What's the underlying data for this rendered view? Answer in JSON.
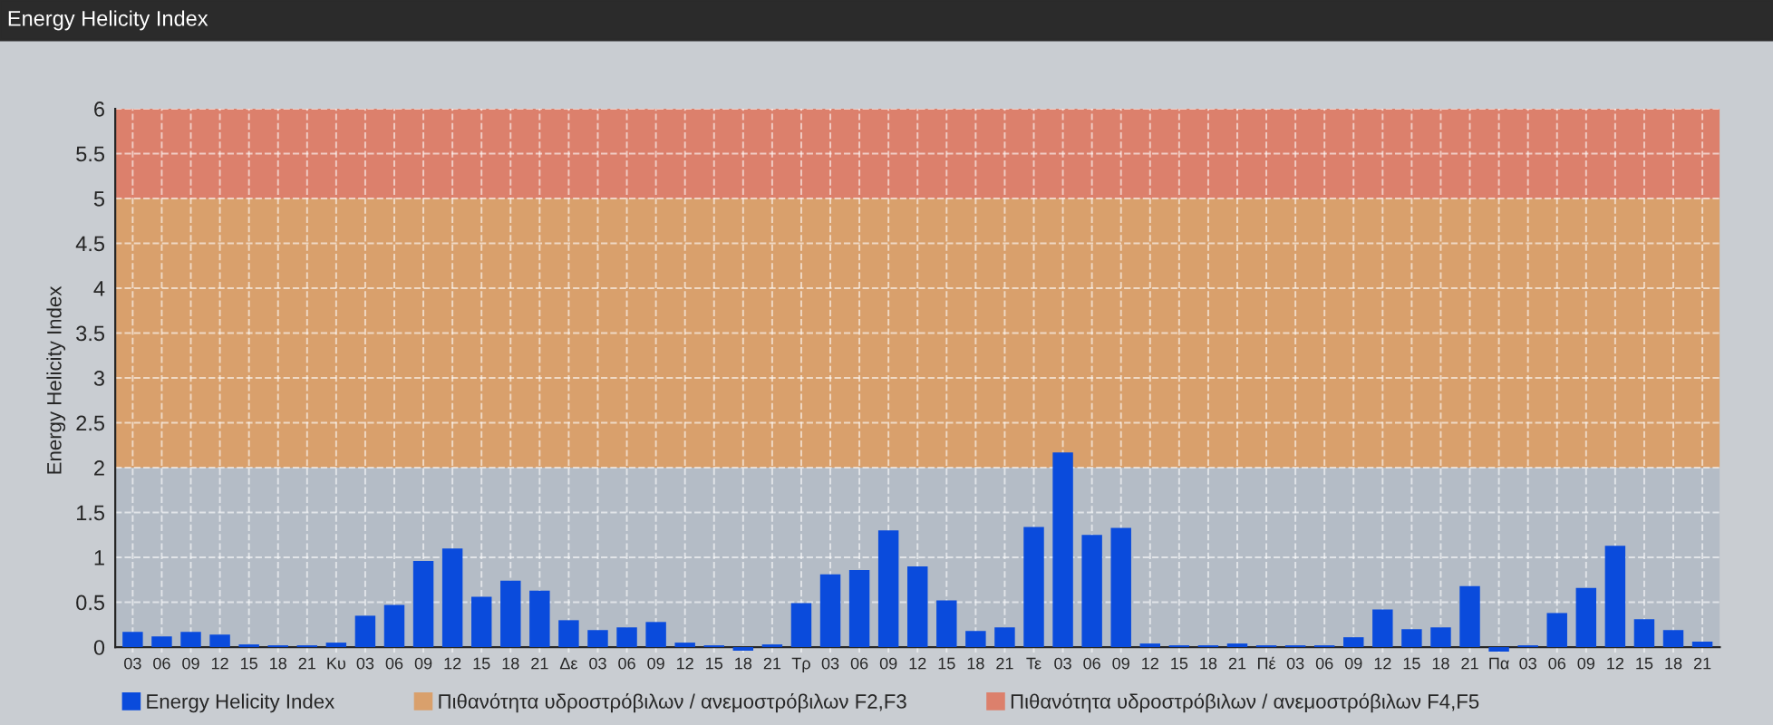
{
  "chart_data": {
    "type": "bar",
    "title": "Energy Helicity Index",
    "ylabel": "Energy Helicity Index",
    "categories": [
      "03",
      "06",
      "09",
      "12",
      "15",
      "18",
      "21",
      "Κυ",
      "03",
      "06",
      "09",
      "12",
      "15",
      "18",
      "21",
      "Δε",
      "03",
      "06",
      "09",
      "12",
      "15",
      "18",
      "21",
      "Τρ",
      "03",
      "06",
      "09",
      "12",
      "15",
      "18",
      "21",
      "Τε",
      "03",
      "06",
      "09",
      "12",
      "15",
      "18",
      "21",
      "Πέ",
      "03",
      "06",
      "09",
      "12",
      "15",
      "18",
      "21",
      "Πα",
      "03",
      "06",
      "09",
      "12",
      "15",
      "18",
      "21"
    ],
    "series": [
      {
        "name": "Energy Helicity Index",
        "color": "#0a4bdc",
        "values": [
          0.17,
          0.12,
          0.17,
          0.14,
          0.03,
          0.02,
          0.02,
          0.05,
          0.35,
          0.47,
          0.96,
          1.1,
          0.56,
          0.74,
          0.63,
          0.3,
          0.19,
          0.22,
          0.28,
          0.05,
          0.02,
          -0.04,
          0.03,
          0.49,
          0.81,
          0.86,
          1.3,
          0.9,
          0.52,
          0.18,
          0.22,
          1.34,
          2.17,
          1.25,
          1.33,
          0.04,
          0.02,
          0.02,
          0.04,
          0.02,
          0.02,
          0.02,
          0.11,
          0.42,
          0.2,
          0.22,
          0.68,
          -0.05,
          0.02,
          0.38,
          0.66,
          1.13,
          0.31,
          0.19,
          0.06
        ]
      }
    ],
    "ylim": [
      -0.06,
      6
    ],
    "yticks": [
      0,
      0.5,
      1,
      1.5,
      2,
      2.5,
      3,
      3.5,
      4,
      4.5,
      5,
      5.5,
      6
    ],
    "bands": [
      {
        "axis": "y",
        "from": 0,
        "to": 2,
        "color": "#b4bcc6"
      },
      {
        "axis": "y",
        "from": 2,
        "to": 5,
        "color": "#d9a06c",
        "label": "Πιθανότητα υδροστρόβιλων / ανεμοστρόβιλων F2,F3"
      },
      {
        "axis": "y",
        "from": 5,
        "to": 6,
        "color": "#dc806c",
        "label": "Πιθανότητα υδροστρόβιλων / ανεμοστρόβιλων F4,F5"
      }
    ],
    "grid": true,
    "legend": "bottom left"
  }
}
